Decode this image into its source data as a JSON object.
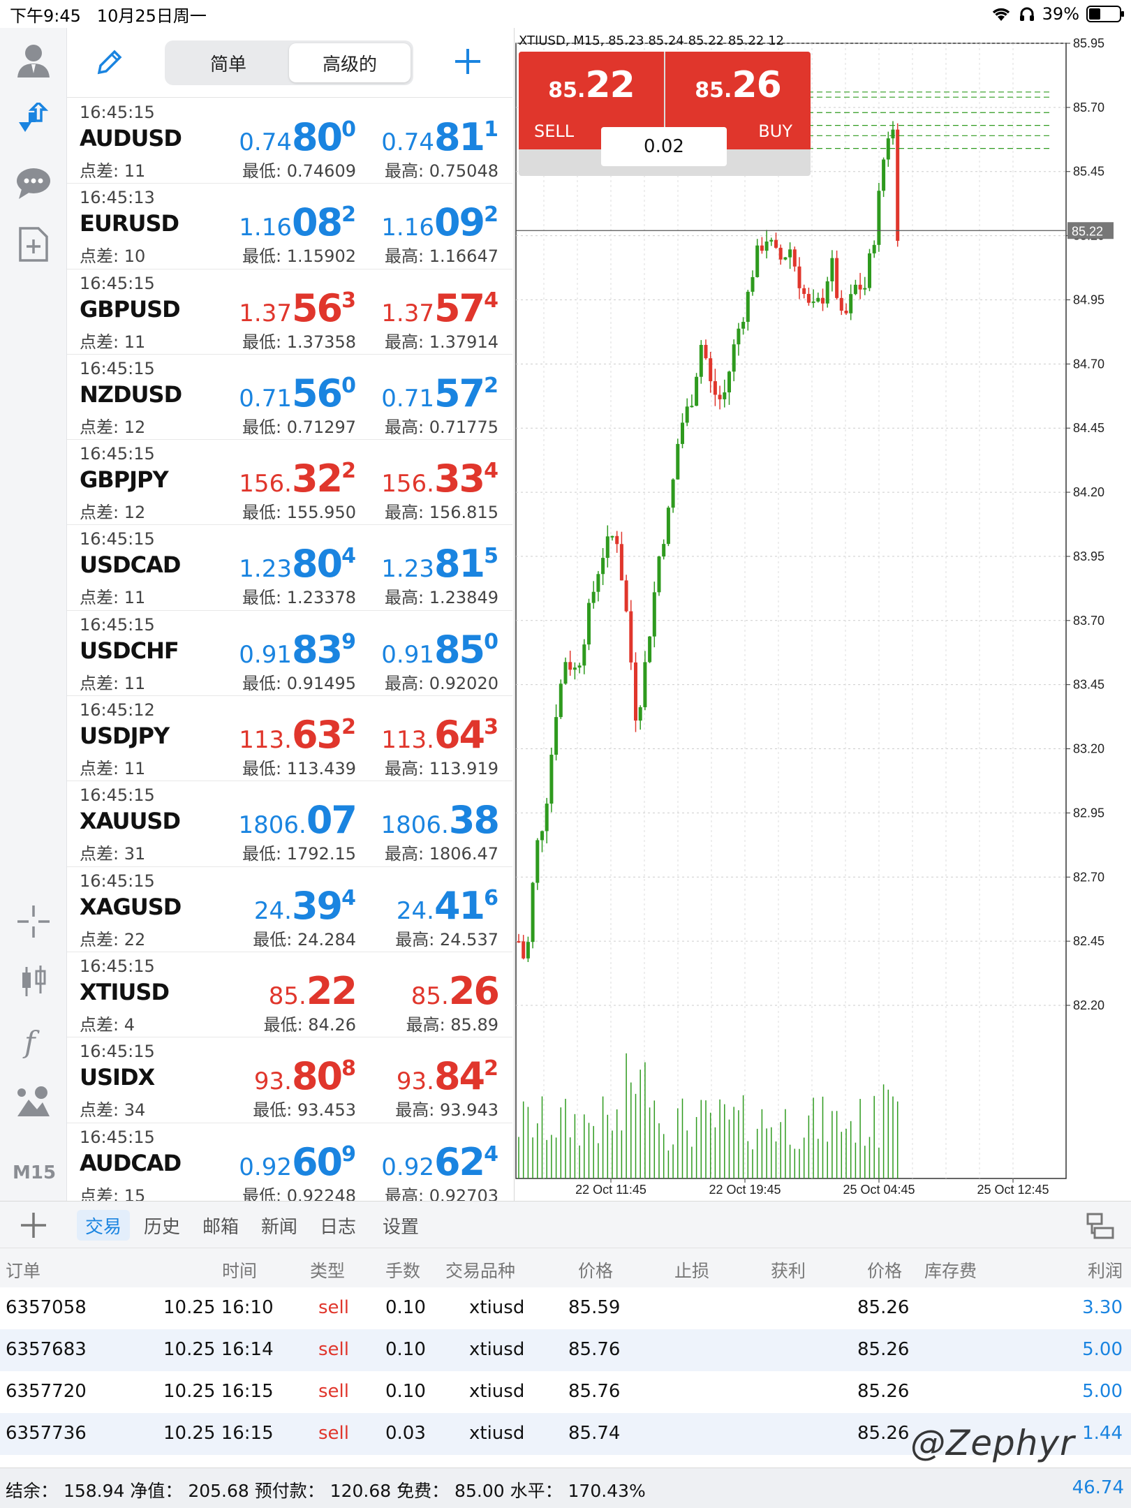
{
  "status": {
    "time": "下午9:45",
    "date": "10月25日周一",
    "battery": "39%",
    "battery_level": 0.39
  },
  "watchlist": {
    "segments": [
      {
        "label": "简单",
        "active": false
      },
      {
        "label": "高级的",
        "active": true
      }
    ],
    "rows": [
      {
        "time": "16:45:15",
        "symbol": "AUDUSD",
        "spread": "点差: 11",
        "bid": {
          "prefix": "0.74",
          "big": "80",
          "sup": "0"
        },
        "ask": {
          "prefix": "0.74",
          "big": "81",
          "sup": "1"
        },
        "low": "最低: 0.74609",
        "high": "最高: 0.75048",
        "color": "blue"
      },
      {
        "time": "16:45:13",
        "symbol": "EURUSD",
        "spread": "点差: 10",
        "bid": {
          "prefix": "1.16",
          "big": "08",
          "sup": "2"
        },
        "ask": {
          "prefix": "1.16",
          "big": "09",
          "sup": "2"
        },
        "low": "最低: 1.15902",
        "high": "最高: 1.16647",
        "color": "blue"
      },
      {
        "time": "16:45:15",
        "symbol": "GBPUSD",
        "spread": "点差: 11",
        "bid": {
          "prefix": "1.37",
          "big": "56",
          "sup": "3"
        },
        "ask": {
          "prefix": "1.37",
          "big": "57",
          "sup": "4"
        },
        "low": "最低: 1.37358",
        "high": "最高: 1.37914",
        "color": "red"
      },
      {
        "time": "16:45:15",
        "symbol": "NZDUSD",
        "spread": "点差: 12",
        "bid": {
          "prefix": "0.71",
          "big": "56",
          "sup": "0"
        },
        "ask": {
          "prefix": "0.71",
          "big": "57",
          "sup": "2"
        },
        "low": "最低: 0.71297",
        "high": "最高: 0.71775",
        "color": "blue"
      },
      {
        "time": "16:45:15",
        "symbol": "GBPJPY",
        "spread": "点差: 12",
        "bid": {
          "prefix": "156.",
          "big": "32",
          "sup": "2"
        },
        "ask": {
          "prefix": "156.",
          "big": "33",
          "sup": "4"
        },
        "low": "最低: 155.950",
        "high": "最高: 156.815",
        "color": "red"
      },
      {
        "time": "16:45:15",
        "symbol": "USDCAD",
        "spread": "点差: 11",
        "bid": {
          "prefix": "1.23",
          "big": "80",
          "sup": "4"
        },
        "ask": {
          "prefix": "1.23",
          "big": "81",
          "sup": "5"
        },
        "low": "最低: 1.23378",
        "high": "最高: 1.23849",
        "color": "blue"
      },
      {
        "time": "16:45:15",
        "symbol": "USDCHF",
        "spread": "点差: 11",
        "bid": {
          "prefix": "0.91",
          "big": "83",
          "sup": "9"
        },
        "ask": {
          "prefix": "0.91",
          "big": "85",
          "sup": "0"
        },
        "low": "最低: 0.91495",
        "high": "最高: 0.92020",
        "color": "blue"
      },
      {
        "time": "16:45:12",
        "symbol": "USDJPY",
        "spread": "点差: 11",
        "bid": {
          "prefix": "113.",
          "big": "63",
          "sup": "2"
        },
        "ask": {
          "prefix": "113.",
          "big": "64",
          "sup": "3"
        },
        "low": "最低: 113.439",
        "high": "最高: 113.919",
        "color": "red"
      },
      {
        "time": "16:45:15",
        "symbol": "XAUUSD",
        "spread": "点差: 31",
        "bid": {
          "prefix": "1806.",
          "big": "07",
          "sup": ""
        },
        "ask": {
          "prefix": "1806.",
          "big": "38",
          "sup": ""
        },
        "low": "最低: 1792.15",
        "high": "最高: 1806.47",
        "color": "blue"
      },
      {
        "time": "16:45:15",
        "symbol": "XAGUSD",
        "spread": "点差: 22",
        "bid": {
          "prefix": "24.",
          "big": "39",
          "sup": "4"
        },
        "ask": {
          "prefix": "24.",
          "big": "41",
          "sup": "6"
        },
        "low": "最低: 24.284",
        "high": "最高: 24.537",
        "color": "blue"
      },
      {
        "time": "16:45:15",
        "symbol": "XTIUSD",
        "spread": "点差: 4",
        "bid": {
          "prefix": "85.",
          "big": "22",
          "sup": ""
        },
        "ask": {
          "prefix": "85.",
          "big": "26",
          "sup": ""
        },
        "low": "最低: 84.26",
        "high": "最高: 85.89",
        "color": "red"
      },
      {
        "time": "16:45:15",
        "symbol": "USIDX",
        "spread": "点差: 34",
        "bid": {
          "prefix": "93.",
          "big": "80",
          "sup": "8"
        },
        "ask": {
          "prefix": "93.",
          "big": "84",
          "sup": "2"
        },
        "low": "最低: 93.453",
        "high": "最高: 93.943",
        "color": "red"
      },
      {
        "time": "16:45:15",
        "symbol": "AUDCAD",
        "spread": "点差: 15",
        "bid": {
          "prefix": "0.92",
          "big": "60",
          "sup": "9"
        },
        "ask": {
          "prefix": "0.92",
          "big": "62",
          "sup": "4"
        },
        "low": "最低: 0.92248",
        "high": "最高: 0.92703",
        "color": "blue"
      }
    ]
  },
  "sidebar": {
    "timeframe": "M15"
  },
  "chart": {
    "header": "XTIUSD, M15, 85.23 85.24 85.22 85.22 12",
    "sell": {
      "small": "85.",
      "big": "22",
      "label": "SELL"
    },
    "buy": {
      "small": "85.",
      "big": "26",
      "label": "BUY"
    },
    "volume": "0.02",
    "current_price_label": "85.22",
    "colors": {
      "up": "#2e9a1e",
      "down": "#e0362c",
      "volume": "#2e9a1e",
      "sl_line": "#2e9a1e",
      "price_line": "#555555"
    },
    "order_levels": [
      85.76,
      85.74,
      85.68,
      85.63,
      85.59,
      85.54
    ]
  },
  "chart_data": {
    "type": "candlestick",
    "symbol": "XTIUSD",
    "timeframe": "M15",
    "y_ticks": [
      "85.95",
      "85.70",
      "85.45",
      "85.20",
      "84.95",
      "84.70",
      "84.45",
      "84.20",
      "83.95",
      "83.70",
      "83.45",
      "83.20",
      "82.95",
      "82.70",
      "82.45",
      "82.20"
    ],
    "ylim": [
      82.2,
      85.95
    ],
    "x_ticks": [
      "22 Oct 11:45",
      "22 Oct 19:45",
      "25 Oct 04:45",
      "25 Oct 12:45"
    ],
    "last_price": 85.22
  },
  "tabs": {
    "items": [
      {
        "label": "交易",
        "active": true
      },
      {
        "label": "历史",
        "active": false
      },
      {
        "label": "邮箱",
        "active": false
      },
      {
        "label": "新闻",
        "active": false
      },
      {
        "label": "日志",
        "active": false
      },
      {
        "label": "设置",
        "active": false
      }
    ]
  },
  "orders": {
    "columns": [
      "订单",
      "时间",
      "类型",
      "手数",
      "交易品种",
      "价格",
      "止损",
      "获利",
      "价格",
      "库存费",
      "利润"
    ],
    "rows": [
      {
        "order": "6357058",
        "time": "10.25 16:10",
        "type": "sell",
        "lots": "0.10",
        "symbol": "xtiusd",
        "price": "85.59",
        "sl": "",
        "tp": "",
        "cur": "85.26",
        "swap": "",
        "profit": "3.30"
      },
      {
        "order": "6357683",
        "time": "10.25 16:14",
        "type": "sell",
        "lots": "0.10",
        "symbol": "xtiusd",
        "price": "85.76",
        "sl": "",
        "tp": "",
        "cur": "85.26",
        "swap": "",
        "profit": "5.00"
      },
      {
        "order": "6357720",
        "time": "10.25 16:15",
        "type": "sell",
        "lots": "0.10",
        "symbol": "xtiusd",
        "price": "85.76",
        "sl": "",
        "tp": "",
        "cur": "85.26",
        "swap": "",
        "profit": "5.00"
      },
      {
        "order": "6357736",
        "time": "10.25 16:15",
        "type": "sell",
        "lots": "0.03",
        "symbol": "xtiusd",
        "price": "85.74",
        "sl": "",
        "tp": "",
        "cur": "85.26",
        "swap": "",
        "profit": "1.44"
      }
    ]
  },
  "footer": {
    "summary": "结余： 158.94 净值： 205.68 预付款： 120.68 免费： 85.00 水平： 170.43%",
    "total": "46.74"
  },
  "watermark": "@Zephyr"
}
